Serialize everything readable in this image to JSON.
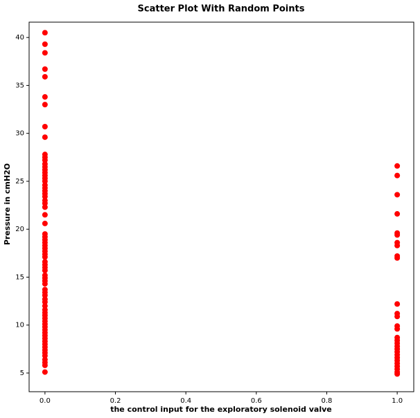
{
  "chart_data": {
    "type": "scatter",
    "title": "Scatter Plot With Random Points",
    "xlabel": "the control input for the exploratory solenoid valve",
    "ylabel": "Pressure in cmH2O",
    "color": "#ff0000",
    "x": [
      0,
      0,
      0,
      0,
      0,
      0,
      0,
      0,
      0,
      0,
      0,
      0,
      0,
      0,
      0,
      0,
      0,
      0,
      0,
      0,
      0,
      0,
      0,
      0,
      0,
      0,
      0,
      0,
      0,
      0,
      0,
      0,
      0,
      0,
      0,
      0,
      0,
      0,
      0,
      0,
      0,
      0,
      0,
      0,
      0,
      0,
      0,
      0,
      0,
      0,
      0,
      0,
      0,
      0,
      0,
      0,
      0,
      0,
      0,
      0,
      0,
      0,
      0,
      0,
      0,
      0,
      0,
      0,
      0,
      0,
      0,
      0,
      0,
      1,
      1,
      1,
      1,
      1,
      1,
      1,
      1,
      1,
      1,
      1,
      1,
      1,
      1,
      1,
      1,
      1,
      1,
      1,
      1,
      1,
      1,
      1,
      1,
      1,
      1,
      1,
      1,
      1
    ],
    "values": [
      40.5,
      39.3,
      38.4,
      36.7,
      35.9,
      33.8,
      33.0,
      30.7,
      29.6,
      27.8,
      27.5,
      27.2,
      26.8,
      26.5,
      26.2,
      25.9,
      25.6,
      25.3,
      25.0,
      24.6,
      24.3,
      24.0,
      23.7,
      23.4,
      23.0,
      22.7,
      22.3,
      21.5,
      20.6,
      19.5,
      19.2,
      18.9,
      18.6,
      18.3,
      18.0,
      17.7,
      17.4,
      17.1,
      16.6,
      16.3,
      16.0,
      15.7,
      15.2,
      14.9,
      14.6,
      14.3,
      13.7,
      13.4,
      13.1,
      12.7,
      12.4,
      12.0,
      11.6,
      11.3,
      11.0,
      10.7,
      10.4,
      10.1,
      9.8,
      9.5,
      9.2,
      8.9,
      8.6,
      8.3,
      8.0,
      7.7,
      7.4,
      7.1,
      6.8,
      6.4,
      6.1,
      5.8,
      5.1,
      26.6,
      25.6,
      23.6,
      21.6,
      19.6,
      19.4,
      18.6,
      18.3,
      17.2,
      17.0,
      12.2,
      11.2,
      10.9,
      9.9,
      9.6,
      8.7,
      8.4,
      8.1,
      7.8,
      7.5,
      7.2,
      6.9,
      6.6,
      6.3,
      6.0,
      5.7,
      5.4,
      5.1,
      4.9
    ],
    "xlim": [
      -0.045,
      1.047
    ],
    "ylim": [
      3.05,
      41.6
    ],
    "xticks": [
      {
        "value": 0,
        "label": "0.0"
      },
      0.2,
      0.4,
      0.6,
      0.8,
      {
        "value": 1,
        "label": "1.0"
      }
    ],
    "yticks": [
      5,
      10,
      15,
      20,
      25,
      30,
      35,
      40
    ]
  }
}
